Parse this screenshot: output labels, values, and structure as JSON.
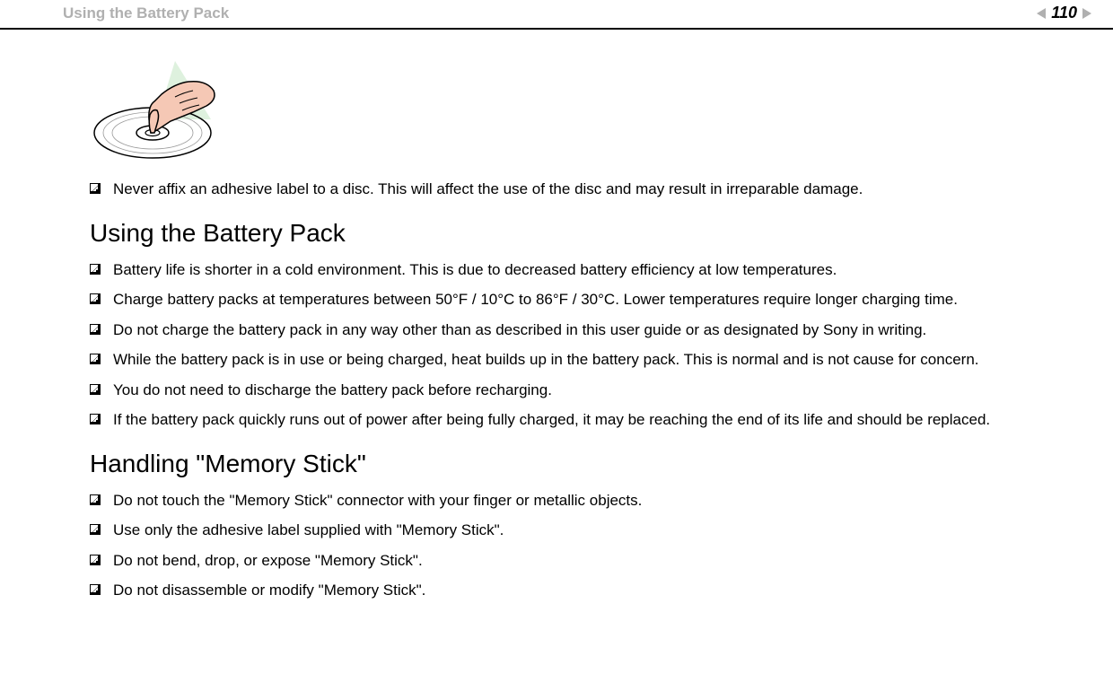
{
  "header": {
    "title": "Using the Battery Pack",
    "page_number": "110"
  },
  "intro_bullet": "Never affix an adhesive label to a disc. This will affect the use of the disc and may result in irreparable damage.",
  "section1": {
    "heading": "Using the Battery Pack",
    "items": [
      "Battery life is shorter in a cold environment. This is due to decreased battery efficiency at low temperatures.",
      "Charge battery packs at temperatures between 50°F / 10°C to 86°F / 30°C. Lower temperatures require longer charging time.",
      "Do not charge the battery pack in any way other than as described in this user guide or as designated by Sony in writing.",
      "While the battery pack is in use or being charged, heat builds up in the battery pack. This is normal and is not cause for concern.",
      "You do not need to discharge the battery pack before recharging.",
      "If the battery pack quickly runs out of power after being fully charged, it may be reaching the end of its life and should be replaced."
    ]
  },
  "section2": {
    "heading": "Handling \"Memory Stick\"",
    "items": [
      "Do not touch the \"Memory Stick\" connector with your finger or metallic objects.",
      "Use only the adhesive label supplied with \"Memory Stick\".",
      "Do not bend, drop, or expose \"Memory Stick\".",
      "Do not disassemble or modify \"Memory Stick\"."
    ]
  },
  "illustration": {
    "disc_color": "#e8e8e8",
    "hand_fill": "#f5c8b5",
    "hand_stroke": "#000000",
    "shadow_color": "#c8e8c8"
  }
}
